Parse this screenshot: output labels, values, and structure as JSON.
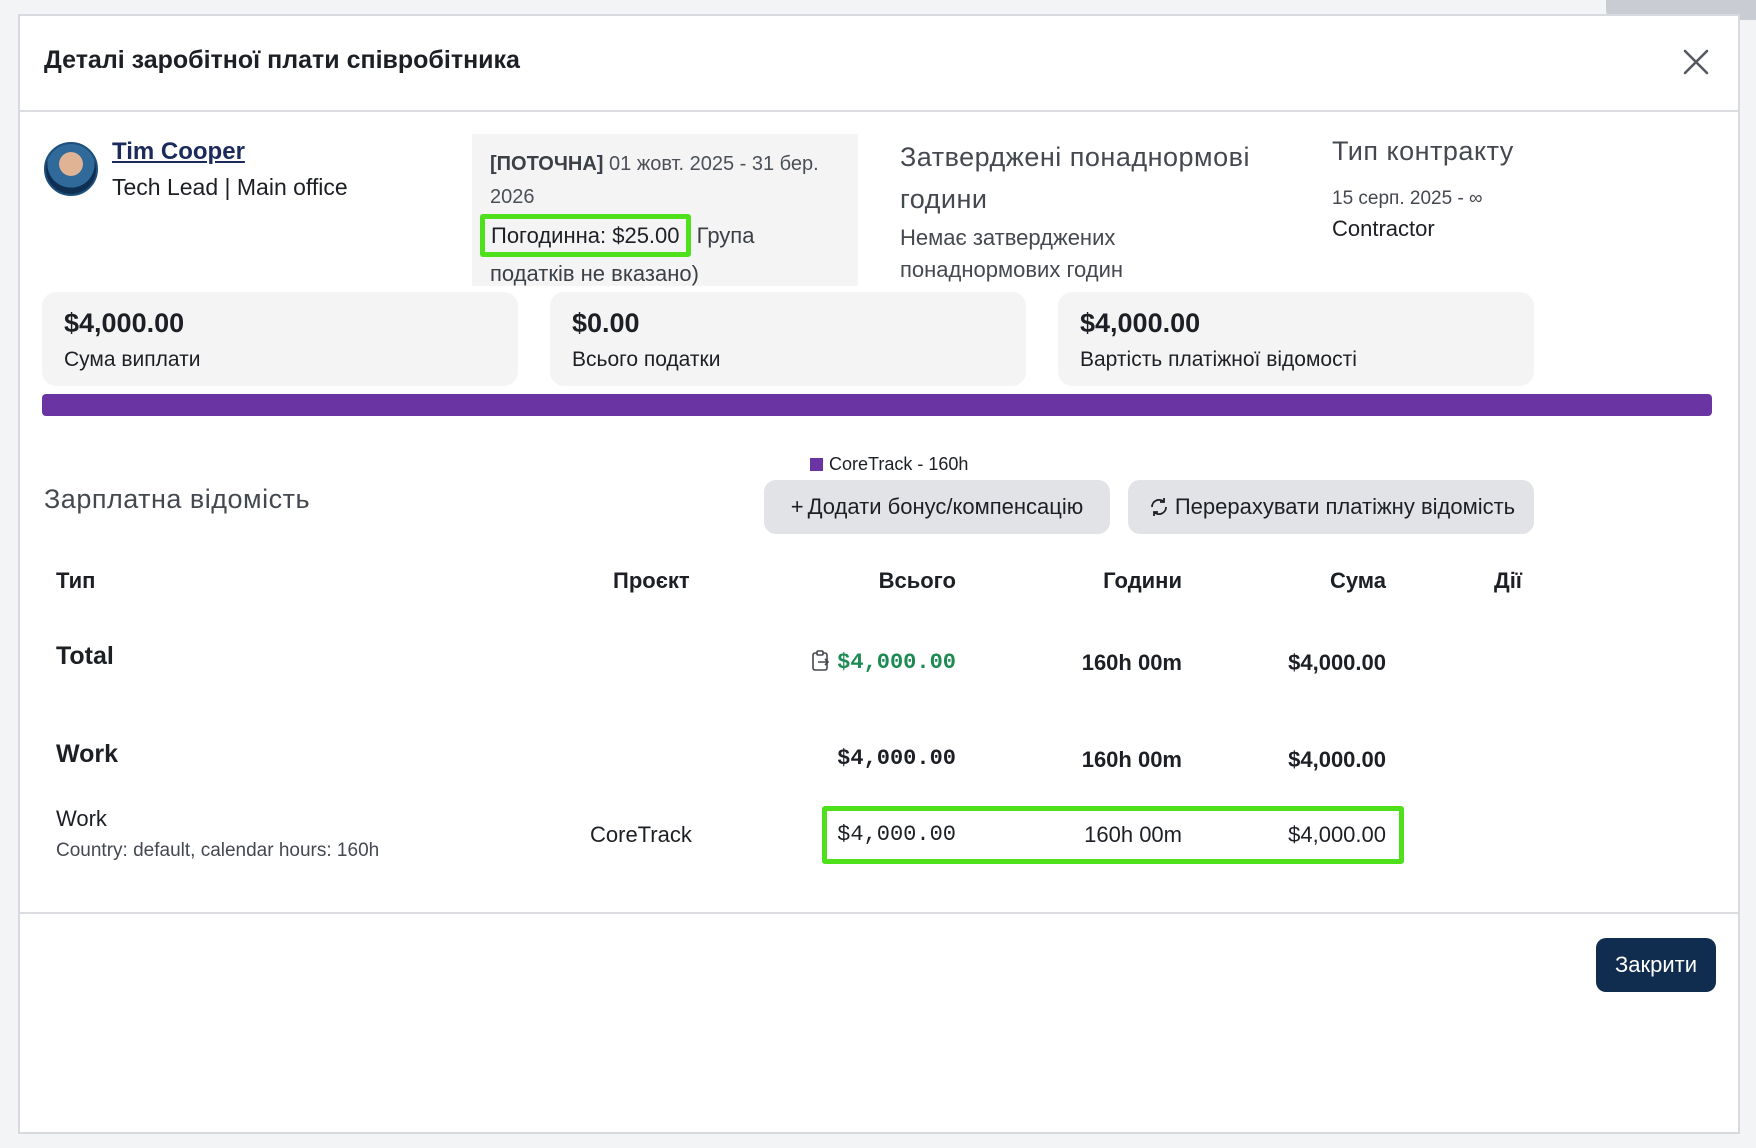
{
  "modal": {
    "title": "Деталі заробітної плати співробітника",
    "close_label": "Закрити"
  },
  "employee": {
    "name": "Tim Cooper",
    "role": "Tech Lead | Main office"
  },
  "period": {
    "status": "[ПОТОЧНА]",
    "range": "01 жовт. 2025 - 31 бер. 2026",
    "rate": "Погодинна: $25.00",
    "tax_group": "Група податків не вказано)"
  },
  "overtime": {
    "title": "Затверджені понаднормові години",
    "text": "Немає затверджених понаднормових годин"
  },
  "contract": {
    "title": "Тип контракту",
    "dates": "15 серп. 2025 - ∞",
    "type": "Contractor"
  },
  "stats": [
    {
      "value": "$4,000.00",
      "label": "Сума виплати"
    },
    {
      "value": "$0.00",
      "label": "Всього податки"
    },
    {
      "value": "$4,000.00",
      "label": "Вартість платіжної відомості"
    }
  ],
  "allocation": {
    "color": "#6a35a3",
    "legend": "CoreTrack - 160h",
    "fraction": 1.0
  },
  "payroll": {
    "title": "Зарплатна відомість",
    "add_bonus": "Додати бонус/компенсацію",
    "recalculate": "Перерахувати платіжну відомість",
    "columns": {
      "type": "Тип",
      "project": "Проєкт",
      "total": "Всього",
      "hours": "Години",
      "amount": "Сума",
      "actions": "Дії"
    },
    "total_row": {
      "label": "Total",
      "total": "$4,000.00",
      "hours": "160h 00m",
      "amount": "$4,000.00"
    },
    "work_group": {
      "label": "Work",
      "total": "$4,000.00",
      "hours": "160h 00m",
      "amount": "$4,000.00"
    },
    "work_item": {
      "label": "Work",
      "sub": "Country: default, calendar hours: 160h",
      "project": "CoreTrack",
      "total": "$4,000.00",
      "hours": "160h 00m",
      "amount": "$4,000.00"
    }
  }
}
